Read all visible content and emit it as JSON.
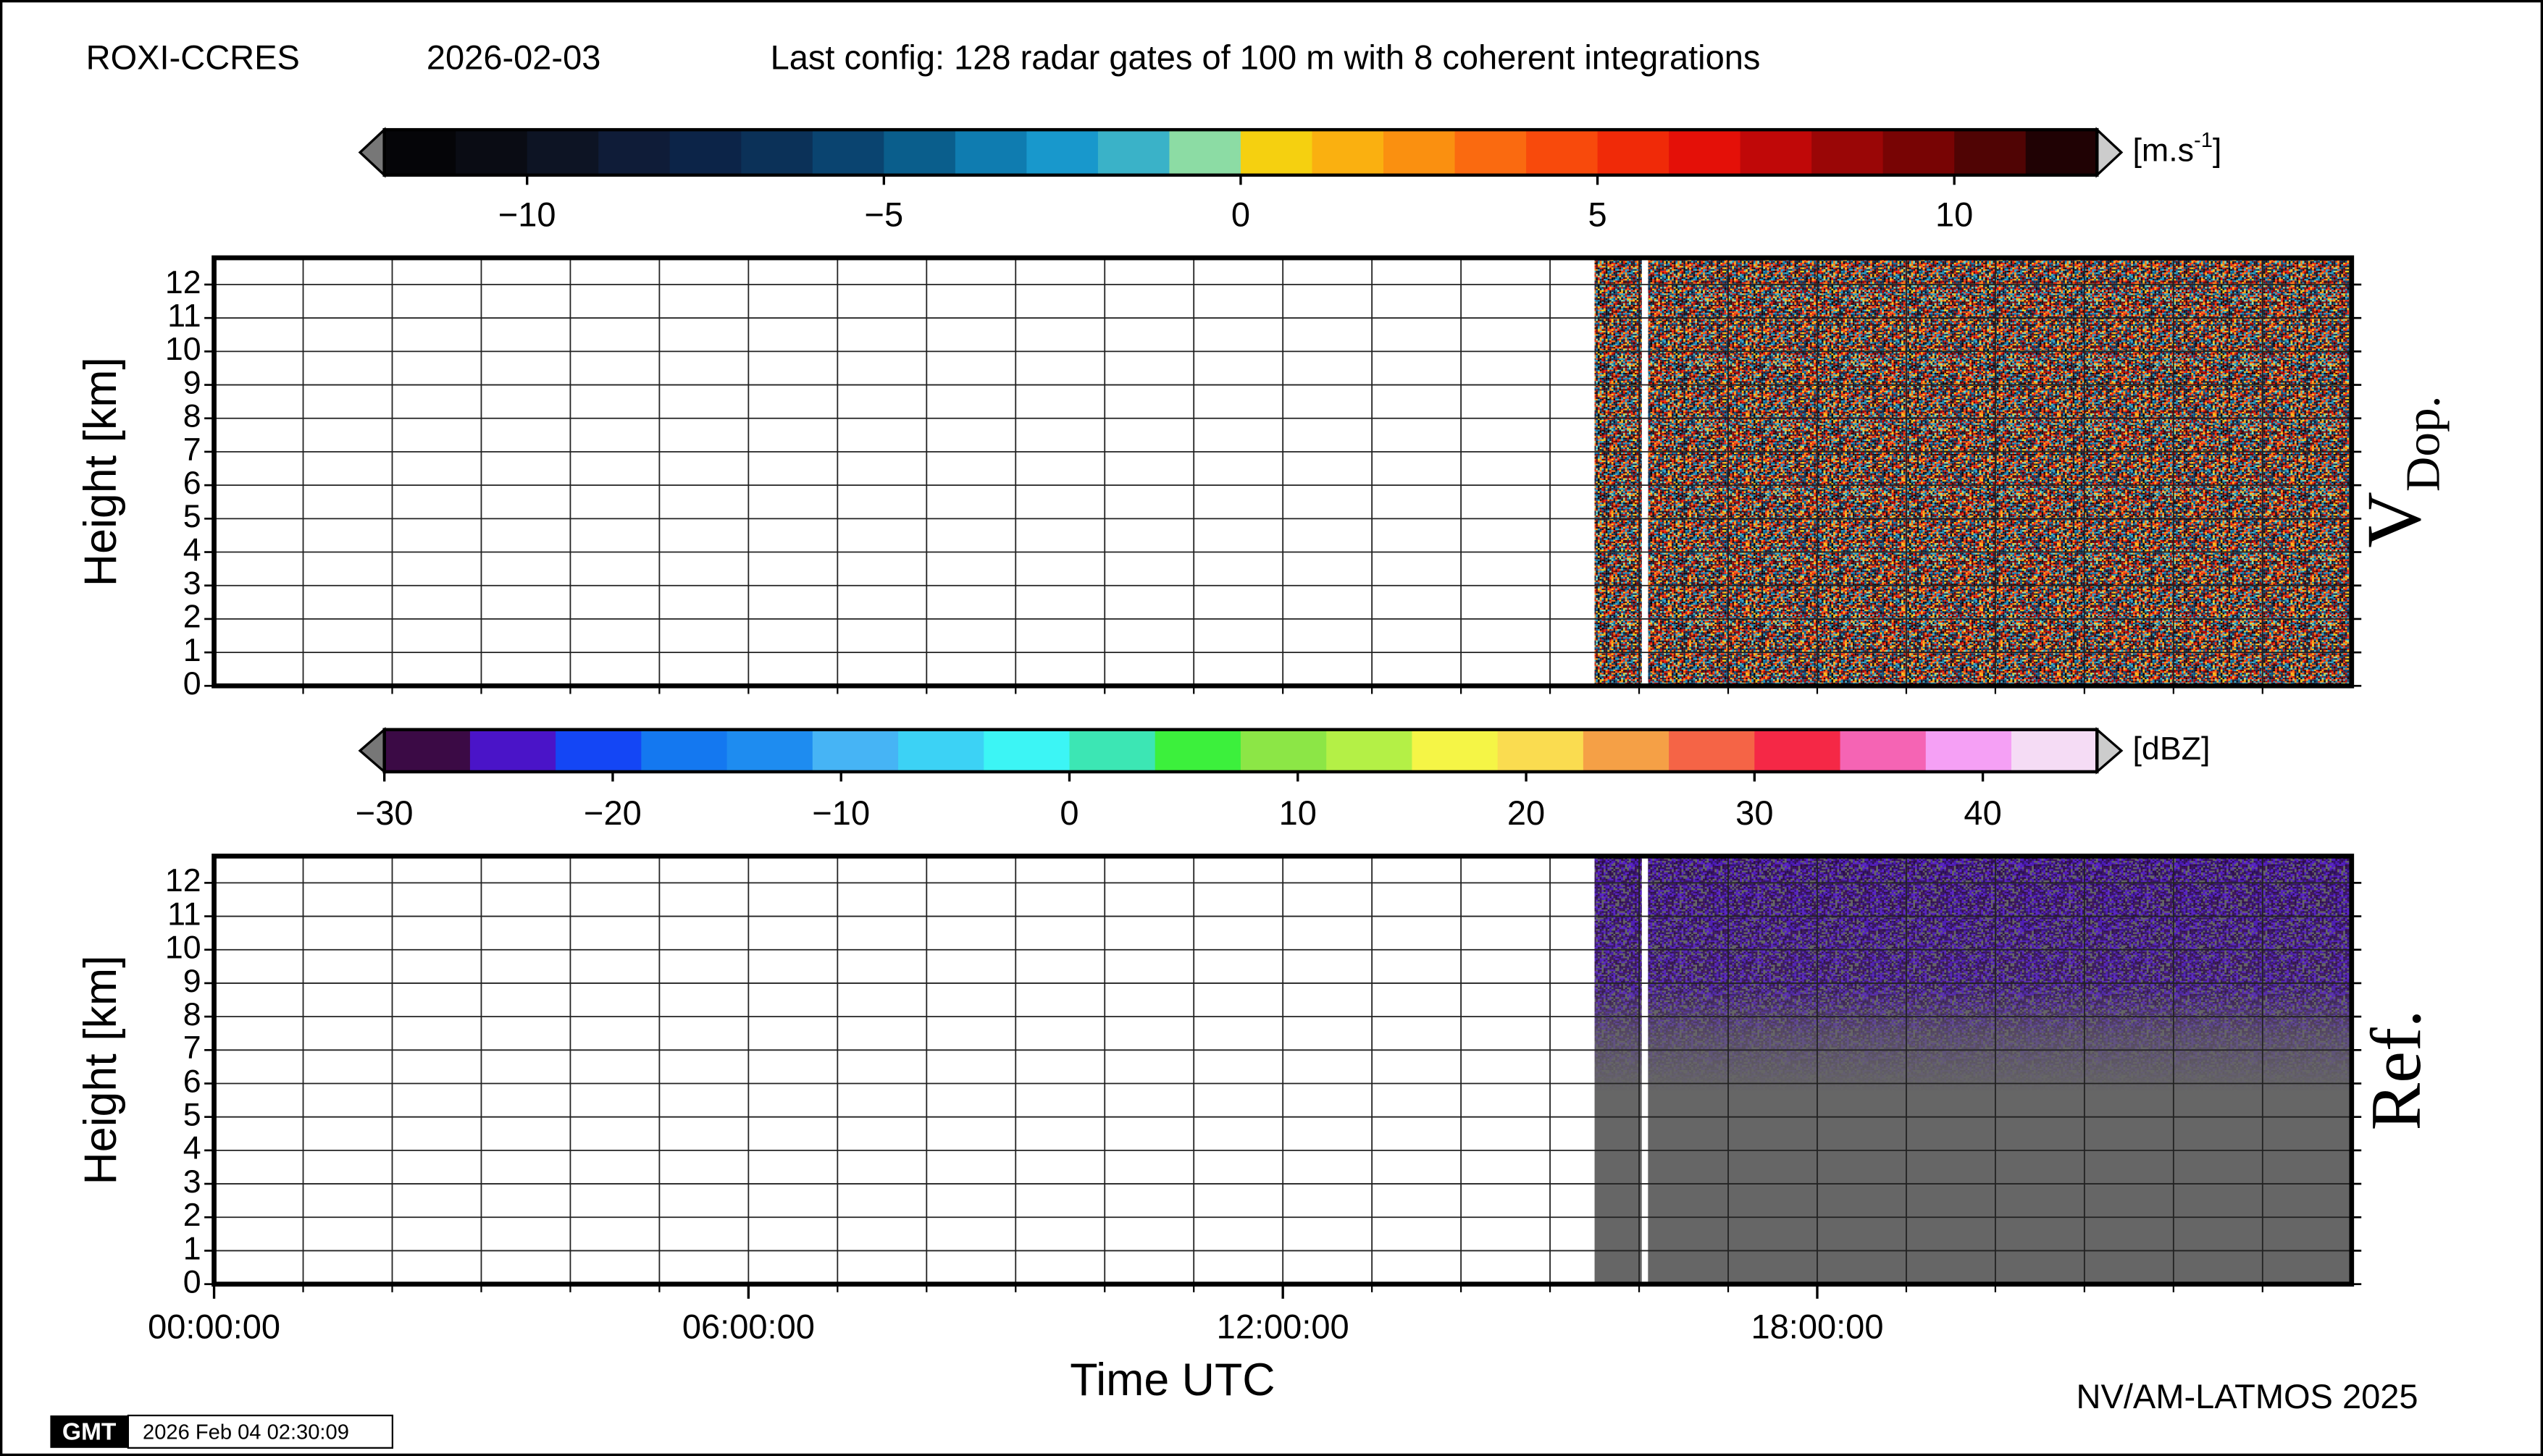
{
  "header": {
    "site": "ROXI-CCRES",
    "date": "2026-02-03",
    "config": "Last config: 128 radar gates of 100 m with 8 coherent integrations"
  },
  "chart_data": [
    {
      "type": "heatmap",
      "title": "V",
      "title_sub": "Dop.",
      "ylabel": "Height [km]",
      "xlim": [
        0,
        24
      ],
      "ylim": [
        0,
        12.8
      ],
      "yticks": [
        0,
        1,
        2,
        3,
        4,
        5,
        6,
        7,
        8,
        9,
        10,
        11,
        12
      ],
      "xminor": [
        1,
        2,
        3,
        4,
        5,
        6,
        7,
        8,
        9,
        10,
        11,
        12,
        13,
        14,
        15,
        16,
        17,
        18,
        19,
        20,
        21,
        22,
        23
      ],
      "grid": true,
      "coverage": [
        [
          15.5,
          16.03
        ],
        [
          16.1,
          24
        ]
      ],
      "colorbar": {
        "label": "[m.s",
        "label_sup": "-1",
        "label_end": "]",
        "lim": [
          -12,
          12
        ],
        "ticks": [
          {
            "value": -10,
            "label": "−10"
          },
          {
            "value": -5,
            "label": "−5"
          },
          0,
          5,
          10
        ],
        "colors": [
          "#050508",
          "#0a0c14",
          "#0d1424",
          "#0f1c38",
          "#0c2448",
          "#0b3158",
          "#0a4470",
          "#0a5e8c",
          "#0f7cb0",
          "#1898cc",
          "#3ab2c8",
          "#8cdca4",
          "#f5d010",
          "#fab010",
          "#fa9010",
          "#fa6a10",
          "#f84a0c",
          "#f02a08",
          "#e41008",
          "#c00808",
          "#9a0606",
          "#780404",
          "#500404",
          "#200204"
        ]
      }
    },
    {
      "type": "heatmap",
      "title": "Ref.",
      "ylabel": "Height [km]",
      "xlabel": "Time UTC",
      "xlim": [
        0,
        24
      ],
      "ylim": [
        0,
        12.8
      ],
      "yticks": [
        0,
        1,
        2,
        3,
        4,
        5,
        6,
        7,
        8,
        9,
        10,
        11,
        12
      ],
      "xticks": [
        {
          "value": 0,
          "label": "00:00:00"
        },
        {
          "value": 6,
          "label": "06:00:00"
        },
        {
          "value": 12,
          "label": "12:00:00"
        },
        {
          "value": 18,
          "label": "18:00:00"
        }
      ],
      "xminor": [
        1,
        2,
        3,
        4,
        5,
        6,
        7,
        8,
        9,
        10,
        11,
        12,
        13,
        14,
        15,
        16,
        17,
        18,
        19,
        20,
        21,
        22,
        23
      ],
      "grid": true,
      "coverage": [
        [
          15.5,
          16.03
        ],
        [
          16.1,
          24
        ]
      ],
      "colorbar": {
        "label": "[dBZ]",
        "lim": [
          -30,
          45
        ],
        "ticks": [
          {
            "value": -30,
            "label": "−30"
          },
          {
            "value": -20,
            "label": "−20"
          },
          {
            "value": -10,
            "label": "−10"
          },
          0,
          10,
          20,
          30,
          40
        ],
        "colors": [
          "#3b0a45",
          "#4a14c8",
          "#1446f5",
          "#1478f0",
          "#1e8cf0",
          "#46b4f5",
          "#3cd2f5",
          "#3cf5f5",
          "#3ce6b4",
          "#3cf03c",
          "#8ce646",
          "#b4f046",
          "#f5f546",
          "#fadc50",
          "#f5a046",
          "#f56446",
          "#f52846",
          "#f564b4",
          "#f5a0f5",
          "#f5dcf5"
        ]
      }
    }
  ],
  "footer": {
    "credit": "NV/AM-LATMOS 2025",
    "logo": "GMT",
    "timestamp": "2026 Feb 04 02:30:09"
  }
}
